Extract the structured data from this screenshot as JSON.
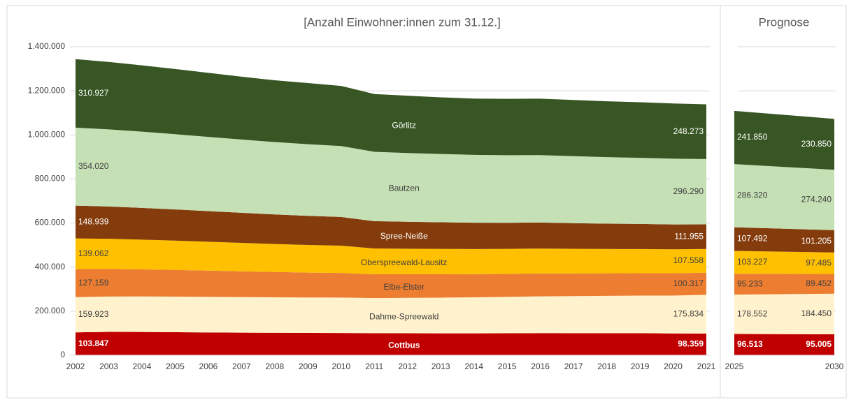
{
  "chart_data": [
    {
      "type": "stacked_area",
      "title": "[Anzahl Einwohner:innen zum 31.12.]",
      "categories": [
        "2002",
        "2003",
        "2004",
        "2005",
        "2006",
        "2007",
        "2008",
        "2009",
        "2010",
        "2011",
        "2012",
        "2013",
        "2014",
        "2015",
        "2016",
        "2017",
        "2018",
        "2019",
        "2020",
        "2021"
      ],
      "ylim": [
        0,
        1400000
      ],
      "yticks": [
        0,
        {
          "value": 200000,
          "label": "200.000"
        },
        {
          "value": 400000,
          "label": "400.000"
        },
        {
          "value": 600000,
          "label": "600.000"
        },
        {
          "value": 800000,
          "label": "800.000"
        },
        {
          "value": 1000000,
          "label": "1.000.000"
        },
        {
          "value": 1200000,
          "label": "1.200.000"
        },
        {
          "value": 1400000,
          "label": "1.400.000"
        }
      ],
      "grid": true,
      "series": [
        {
          "name": "Cottbus",
          "color": "#c00000",
          "values": [
            103847,
            106000,
            105700,
            104600,
            103500,
            102700,
            102000,
            101300,
            101000,
            100000,
            99900,
            99500,
            99400,
            99700,
            100400,
            100000,
            100200,
            100300,
            99000,
            98359
          ],
          "value_labels": [
            "103.847",
            null,
            null,
            null,
            null,
            null,
            null,
            null,
            null,
            null,
            null,
            null,
            null,
            null,
            null,
            null,
            null,
            null,
            null,
            "98.359"
          ]
        },
        {
          "name": "Dahme-Spreewald",
          "color": "#fff2cc",
          "values": [
            159923,
            160500,
            161000,
            161500,
            161500,
            161300,
            161000,
            160800,
            160900,
            159500,
            160500,
            162000,
            163500,
            165000,
            167000,
            168500,
            169500,
            170500,
            172000,
            175834
          ],
          "value_labels": [
            "159.923",
            null,
            null,
            null,
            null,
            null,
            null,
            null,
            null,
            null,
            null,
            null,
            null,
            null,
            null,
            null,
            null,
            null,
            null,
            "175.834"
          ]
        },
        {
          "name": "Elbe-Elster",
          "color": "#ed7d31",
          "values": [
            127159,
            125000,
            123000,
            121000,
            119000,
            117000,
            115000,
            113000,
            111500,
            108000,
            107000,
            106000,
            105000,
            104500,
            104000,
            103000,
            102000,
            101500,
            101000,
            100317
          ],
          "value_labels": [
            "127.159",
            null,
            null,
            null,
            null,
            null,
            null,
            null,
            null,
            null,
            null,
            null,
            null,
            null,
            null,
            null,
            null,
            null,
            null,
            "100.317"
          ]
        },
        {
          "name": "Oberspreewald-Lausitz",
          "color": "#ffc000",
          "values": [
            139062,
            137000,
            135000,
            133000,
            131000,
            129000,
            127000,
            125500,
            124000,
            117000,
            116000,
            115000,
            114000,
            113500,
            113000,
            111500,
            110500,
            109500,
            108500,
            107558
          ],
          "value_labels": [
            "139.062",
            null,
            null,
            null,
            null,
            null,
            null,
            null,
            null,
            null,
            null,
            null,
            null,
            null,
            null,
            null,
            null,
            null,
            null,
            "107.558"
          ]
        },
        {
          "name": "Spree-Neiße",
          "color": "#843c0c",
          "values": [
            148939,
            146500,
            144000,
            141500,
            139000,
            136500,
            134000,
            132000,
            130000,
            124000,
            122500,
            121000,
            119500,
            118500,
            118000,
            116500,
            115000,
            114000,
            113000,
            111955
          ],
          "value_labels": [
            "148.939",
            null,
            null,
            null,
            null,
            null,
            null,
            null,
            null,
            null,
            null,
            null,
            null,
            null,
            null,
            null,
            null,
            null,
            null,
            "111.955"
          ]
        },
        {
          "name": "Bautzen",
          "color": "#c5e0b4",
          "values": [
            354020,
            350000,
            346000,
            341500,
            337000,
            332500,
            328500,
            325000,
            322000,
            315000,
            312000,
            310000,
            308000,
            306500,
            306000,
            304000,
            302000,
            300000,
            298500,
            296290
          ],
          "value_labels": [
            "354.020",
            null,
            null,
            null,
            null,
            null,
            null,
            null,
            null,
            null,
            null,
            null,
            null,
            null,
            null,
            null,
            null,
            null,
            null,
            "296.290"
          ]
        },
        {
          "name": "Görlitz",
          "color": "#375623",
          "values": [
            310927,
            306000,
            301000,
            296000,
            290500,
            285000,
            280500,
            277500,
            273000,
            262000,
            260000,
            257000,
            255500,
            256000,
            256000,
            255000,
            253500,
            252500,
            250500,
            248273
          ],
          "value_labels": [
            "310.927",
            null,
            null,
            null,
            null,
            null,
            null,
            null,
            null,
            null,
            null,
            null,
            null,
            null,
            null,
            null,
            null,
            null,
            null,
            "248.273"
          ]
        }
      ]
    },
    {
      "type": "stacked_area",
      "title": "Prognose",
      "categories": [
        "2025",
        "2030"
      ],
      "ylim": [
        0,
        1400000
      ],
      "yticks": [
        0,
        200000,
        400000,
        600000,
        800000,
        1000000,
        1200000,
        1400000
      ],
      "grid": true,
      "series": [
        {
          "color": "#c00000",
          "values": [
            96513,
            95005
          ],
          "value_labels": [
            "96.513",
            "95.005"
          ]
        },
        {
          "color": "#fff2cc",
          "values": [
            178552,
            184450
          ],
          "value_labels": [
            "178.552",
            "184.450"
          ]
        },
        {
          "color": "#ed7d31",
          "values": [
            95233,
            89452
          ],
          "value_labels": [
            "95.233",
            "89.452"
          ]
        },
        {
          "color": "#ffc000",
          "values": [
            103227,
            97485
          ],
          "value_labels": [
            "103.227",
            "97.485"
          ]
        },
        {
          "color": "#843c0c",
          "values": [
            107492,
            101205
          ],
          "value_labels": [
            "107.492",
            "101.205"
          ]
        },
        {
          "color": "#c5e0b4",
          "values": [
            286320,
            274240
          ],
          "value_labels": [
            "286.320",
            "274.240"
          ]
        },
        {
          "color": "#375623",
          "values": [
            241850,
            230850
          ],
          "value_labels": [
            "241.850",
            "230.850"
          ]
        }
      ]
    }
  ]
}
